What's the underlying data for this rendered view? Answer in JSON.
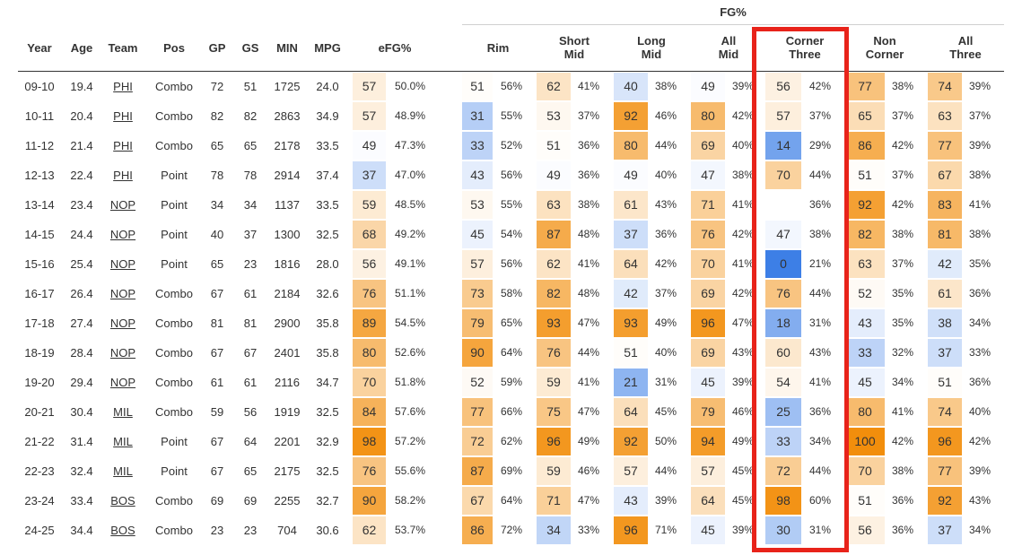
{
  "chart_data": {
    "type": "table",
    "group_header": "FG%",
    "columns": [
      {
        "key": "year",
        "label": "Year"
      },
      {
        "key": "age",
        "label": "Age"
      },
      {
        "key": "team",
        "label": "Team"
      },
      {
        "key": "pos",
        "label": "Pos"
      },
      {
        "key": "gp",
        "label": "GP"
      },
      {
        "key": "gs",
        "label": "GS"
      },
      {
        "key": "min",
        "label": "MIN"
      },
      {
        "key": "mpg",
        "label": "MPG"
      },
      {
        "key": "efg",
        "label": "eFG%"
      },
      {
        "key": "rim",
        "label": "Rim"
      },
      {
        "key": "short_mid",
        "label": "Short\nMid"
      },
      {
        "key": "long_mid",
        "label": "Long\nMid"
      },
      {
        "key": "all_mid",
        "label": "All\nMid"
      },
      {
        "key": "corner_three",
        "label": "Corner\nThree"
      },
      {
        "key": "non_corner",
        "label": "Non\nCorner"
      },
      {
        "key": "all_three",
        "label": "All\nThree"
      }
    ],
    "highlighted_column": "corner_three",
    "highlight_color": "#e8231a",
    "color_scale": {
      "low": "#3d7fe6",
      "mid": "#ffffff",
      "high": "#f28e0c"
    },
    "rows": [
      {
        "year": "09-10",
        "age": "19.4",
        "team": "PHI",
        "pos": "Combo",
        "gp": "72",
        "gs": "51",
        "min": "1725",
        "mpg": "24.0",
        "efg": [
          57,
          "50.0%"
        ],
        "rim": [
          51,
          "56%"
        ],
        "short_mid": [
          62,
          "41%"
        ],
        "long_mid": [
          40,
          "38%"
        ],
        "all_mid": [
          49,
          "39%"
        ],
        "corner_three": [
          56,
          "42%"
        ],
        "non_corner": [
          77,
          "38%"
        ],
        "all_three": [
          74,
          "39%"
        ]
      },
      {
        "year": "10-11",
        "age": "20.4",
        "team": "PHI",
        "pos": "Combo",
        "gp": "82",
        "gs": "82",
        "min": "2863",
        "mpg": "34.9",
        "efg": [
          57,
          "48.9%"
        ],
        "rim": [
          31,
          "55%"
        ],
        "short_mid": [
          53,
          "37%"
        ],
        "long_mid": [
          92,
          "46%"
        ],
        "all_mid": [
          80,
          "42%"
        ],
        "corner_three": [
          57,
          "37%"
        ],
        "non_corner": [
          65,
          "37%"
        ],
        "all_three": [
          63,
          "37%"
        ]
      },
      {
        "year": "11-12",
        "age": "21.4",
        "team": "PHI",
        "pos": "Combo",
        "gp": "65",
        "gs": "65",
        "min": "2178",
        "mpg": "33.5",
        "efg": [
          49,
          "47.3%"
        ],
        "rim": [
          33,
          "52%"
        ],
        "short_mid": [
          51,
          "36%"
        ],
        "long_mid": [
          80,
          "44%"
        ],
        "all_mid": [
          69,
          "40%"
        ],
        "corner_three": [
          14,
          "29%"
        ],
        "non_corner": [
          86,
          "42%"
        ],
        "all_three": [
          77,
          "39%"
        ]
      },
      {
        "year": "12-13",
        "age": "22.4",
        "team": "PHI",
        "pos": "Point",
        "gp": "78",
        "gs": "78",
        "min": "2914",
        "mpg": "37.4",
        "efg": [
          37,
          "47.0%"
        ],
        "rim": [
          43,
          "56%"
        ],
        "short_mid": [
          49,
          "36%"
        ],
        "long_mid": [
          49,
          "40%"
        ],
        "all_mid": [
          47,
          "38%"
        ],
        "corner_three": [
          70,
          "44%"
        ],
        "non_corner": [
          51,
          "37%"
        ],
        "all_three": [
          67,
          "38%"
        ]
      },
      {
        "year": "13-14",
        "age": "23.4",
        "team": "NOP",
        "pos": "Point",
        "gp": "34",
        "gs": "34",
        "min": "1137",
        "mpg": "33.5",
        "efg": [
          59,
          "48.5%"
        ],
        "rim": [
          53,
          "55%"
        ],
        "short_mid": [
          63,
          "38%"
        ],
        "long_mid": [
          61,
          "43%"
        ],
        "all_mid": [
          71,
          "41%"
        ],
        "corner_three": [
          null,
          "36%"
        ],
        "non_corner": [
          92,
          "42%"
        ],
        "all_three": [
          83,
          "41%"
        ]
      },
      {
        "year": "14-15",
        "age": "24.4",
        "team": "NOP",
        "pos": "Point",
        "gp": "40",
        "gs": "37",
        "min": "1300",
        "mpg": "32.5",
        "efg": [
          68,
          "49.2%"
        ],
        "rim": [
          45,
          "54%"
        ],
        "short_mid": [
          87,
          "48%"
        ],
        "long_mid": [
          37,
          "36%"
        ],
        "all_mid": [
          76,
          "42%"
        ],
        "corner_three": [
          47,
          "38%"
        ],
        "non_corner": [
          82,
          "38%"
        ],
        "all_three": [
          81,
          "38%"
        ]
      },
      {
        "year": "15-16",
        "age": "25.4",
        "team": "NOP",
        "pos": "Point",
        "gp": "65",
        "gs": "23",
        "min": "1816",
        "mpg": "28.0",
        "efg": [
          56,
          "49.1%"
        ],
        "rim": [
          57,
          "56%"
        ],
        "short_mid": [
          62,
          "41%"
        ],
        "long_mid": [
          64,
          "42%"
        ],
        "all_mid": [
          70,
          "41%"
        ],
        "corner_three": [
          0,
          "21%"
        ],
        "non_corner": [
          63,
          "37%"
        ],
        "all_three": [
          42,
          "35%"
        ]
      },
      {
        "year": "16-17",
        "age": "26.4",
        "team": "NOP",
        "pos": "Combo",
        "gp": "67",
        "gs": "61",
        "min": "2184",
        "mpg": "32.6",
        "efg": [
          76,
          "51.1%"
        ],
        "rim": [
          73,
          "58%"
        ],
        "short_mid": [
          82,
          "48%"
        ],
        "long_mid": [
          42,
          "37%"
        ],
        "all_mid": [
          69,
          "42%"
        ],
        "corner_three": [
          76,
          "44%"
        ],
        "non_corner": [
          52,
          "35%"
        ],
        "all_three": [
          61,
          "36%"
        ]
      },
      {
        "year": "17-18",
        "age": "27.4",
        "team": "NOP",
        "pos": "Combo",
        "gp": "81",
        "gs": "81",
        "min": "2900",
        "mpg": "35.8",
        "efg": [
          89,
          "54.5%"
        ],
        "rim": [
          79,
          "65%"
        ],
        "short_mid": [
          93,
          "47%"
        ],
        "long_mid": [
          93,
          "49%"
        ],
        "all_mid": [
          96,
          "47%"
        ],
        "corner_three": [
          18,
          "31%"
        ],
        "non_corner": [
          43,
          "35%"
        ],
        "all_three": [
          38,
          "34%"
        ]
      },
      {
        "year": "18-19",
        "age": "28.4",
        "team": "NOP",
        "pos": "Combo",
        "gp": "67",
        "gs": "67",
        "min": "2401",
        "mpg": "35.8",
        "efg": [
          80,
          "52.6%"
        ],
        "rim": [
          90,
          "64%"
        ],
        "short_mid": [
          76,
          "44%"
        ],
        "long_mid": [
          51,
          "40%"
        ],
        "all_mid": [
          69,
          "43%"
        ],
        "corner_three": [
          60,
          "43%"
        ],
        "non_corner": [
          33,
          "32%"
        ],
        "all_three": [
          37,
          "33%"
        ]
      },
      {
        "year": "19-20",
        "age": "29.4",
        "team": "NOP",
        "pos": "Combo",
        "gp": "61",
        "gs": "61",
        "min": "2116",
        "mpg": "34.7",
        "efg": [
          70,
          "51.8%"
        ],
        "rim": [
          52,
          "59%"
        ],
        "short_mid": [
          59,
          "41%"
        ],
        "long_mid": [
          21,
          "31%"
        ],
        "all_mid": [
          45,
          "39%"
        ],
        "corner_three": [
          54,
          "41%"
        ],
        "non_corner": [
          45,
          "34%"
        ],
        "all_three": [
          51,
          "36%"
        ]
      },
      {
        "year": "20-21",
        "age": "30.4",
        "team": "MIL",
        "pos": "Combo",
        "gp": "59",
        "gs": "56",
        "min": "1919",
        "mpg": "32.5",
        "efg": [
          84,
          "57.6%"
        ],
        "rim": [
          77,
          "66%"
        ],
        "short_mid": [
          75,
          "47%"
        ],
        "long_mid": [
          64,
          "45%"
        ],
        "all_mid": [
          79,
          "46%"
        ],
        "corner_three": [
          25,
          "36%"
        ],
        "non_corner": [
          80,
          "41%"
        ],
        "all_three": [
          74,
          "40%"
        ]
      },
      {
        "year": "21-22",
        "age": "31.4",
        "team": "MIL",
        "pos": "Point",
        "gp": "67",
        "gs": "64",
        "min": "2201",
        "mpg": "32.9",
        "efg": [
          98,
          "57.2%"
        ],
        "rim": [
          72,
          "62%"
        ],
        "short_mid": [
          96,
          "49%"
        ],
        "long_mid": [
          92,
          "50%"
        ],
        "all_mid": [
          94,
          "49%"
        ],
        "corner_three": [
          33,
          "34%"
        ],
        "non_corner": [
          100,
          "42%"
        ],
        "all_three": [
          96,
          "42%"
        ]
      },
      {
        "year": "22-23",
        "age": "32.4",
        "team": "MIL",
        "pos": "Point",
        "gp": "67",
        "gs": "65",
        "min": "2175",
        "mpg": "32.5",
        "efg": [
          76,
          "55.6%"
        ],
        "rim": [
          87,
          "69%"
        ],
        "short_mid": [
          59,
          "46%"
        ],
        "long_mid": [
          57,
          "44%"
        ],
        "all_mid": [
          57,
          "45%"
        ],
        "corner_three": [
          72,
          "44%"
        ],
        "non_corner": [
          70,
          "38%"
        ],
        "all_three": [
          77,
          "39%"
        ]
      },
      {
        "year": "23-24",
        "age": "33.4",
        "team": "BOS",
        "pos": "Combo",
        "gp": "69",
        "gs": "69",
        "min": "2255",
        "mpg": "32.7",
        "efg": [
          90,
          "58.2%"
        ],
        "rim": [
          67,
          "64%"
        ],
        "short_mid": [
          71,
          "47%"
        ],
        "long_mid": [
          43,
          "39%"
        ],
        "all_mid": [
          64,
          "45%"
        ],
        "corner_three": [
          98,
          "60%"
        ],
        "non_corner": [
          51,
          "36%"
        ],
        "all_three": [
          92,
          "43%"
        ]
      },
      {
        "year": "24-25",
        "age": "34.4",
        "team": "BOS",
        "pos": "Combo",
        "gp": "23",
        "gs": "23",
        "min": "704",
        "mpg": "30.6",
        "efg": [
          62,
          "53.7%"
        ],
        "rim": [
          86,
          "72%"
        ],
        "short_mid": [
          34,
          "33%"
        ],
        "long_mid": [
          96,
          "71%"
        ],
        "all_mid": [
          45,
          "39%"
        ],
        "corner_three": [
          30,
          "31%"
        ],
        "non_corner": [
          56,
          "36%"
        ],
        "all_three": [
          37,
          "34%"
        ]
      }
    ]
  }
}
